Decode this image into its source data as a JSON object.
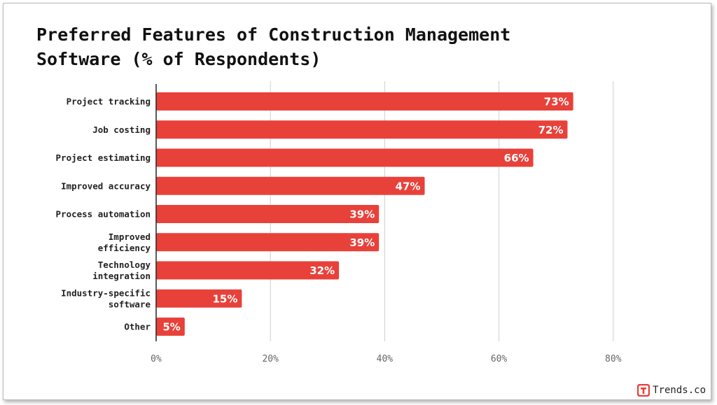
{
  "chart_data": {
    "type": "bar",
    "orientation": "horizontal",
    "title_lines": [
      "Preferred Features of Construction Management",
      "Software (% of Respondents)"
    ],
    "categories": [
      [
        "Project tracking"
      ],
      [
        "Job costing"
      ],
      [
        "Project estimating"
      ],
      [
        "Improved accuracy"
      ],
      [
        "Process automation"
      ],
      [
        "Improved",
        "efficiency"
      ],
      [
        "Technology",
        "integration"
      ],
      [
        "Industry-specific",
        "software"
      ],
      [
        "Other"
      ]
    ],
    "values": [
      73,
      72,
      66,
      47,
      39,
      39,
      32,
      15,
      5
    ],
    "data_labels": [
      "73%",
      "72%",
      "66%",
      "47%",
      "39%",
      "39%",
      "32%",
      "15%",
      "5%"
    ],
    "xlim": [
      0,
      100
    ],
    "x_ticks": [
      0,
      20,
      40,
      60,
      80
    ],
    "x_tick_labels": [
      "0%",
      "20%",
      "40%",
      "60%",
      "80%"
    ],
    "grid": true,
    "bar_color": "#E8413A"
  },
  "brand": {
    "name": "Trends.co",
    "icon": "trends-logo-icon",
    "color": "#E8413A"
  }
}
